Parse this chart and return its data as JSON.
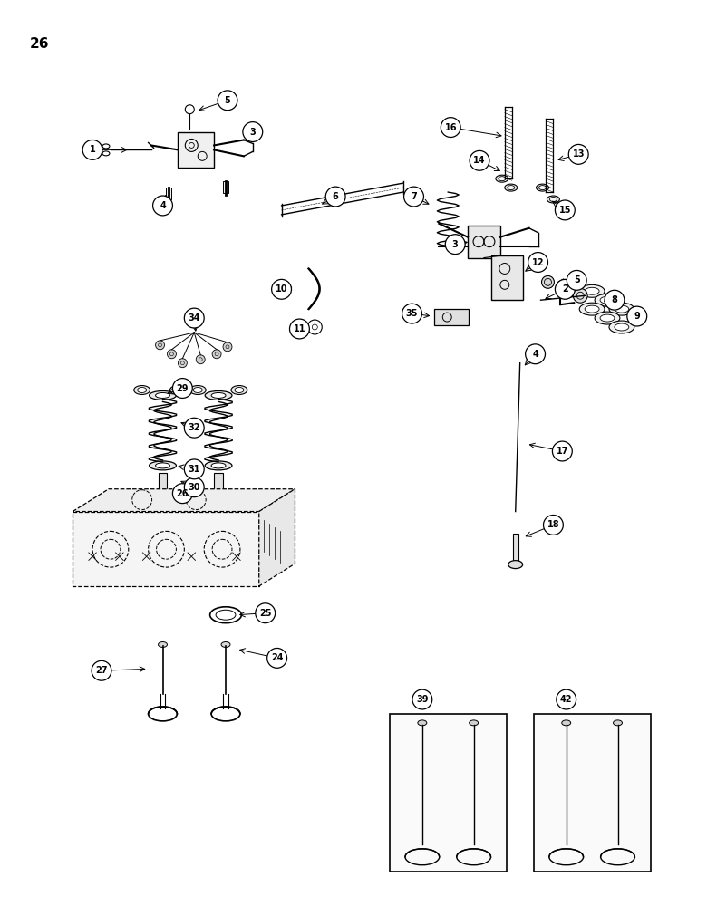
{
  "background_color": "#ffffff",
  "page_number": "26",
  "figsize": [
    7.8,
    10.0
  ],
  "dpi": 100
}
